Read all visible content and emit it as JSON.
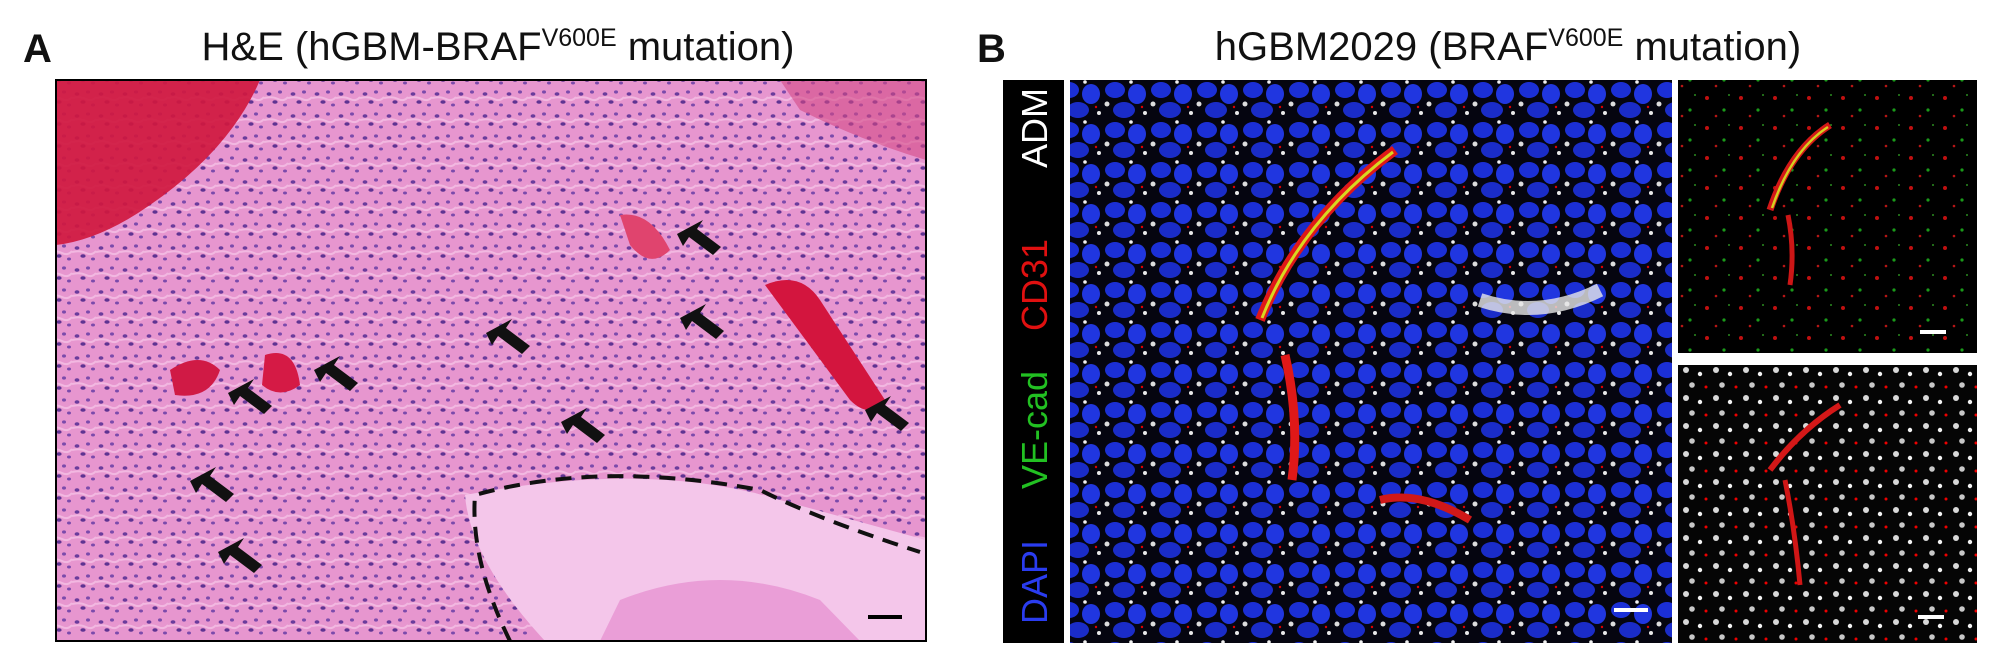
{
  "panels": [
    {
      "label": "A",
      "title": {
        "text": "H&E (hGBM-BRAF",
        "superscript": "V600E",
        "suffix": " mutation)"
      }
    },
    {
      "label": "B",
      "title": {
        "text": "hGBM2029 (BRAF",
        "superscript": "V600E",
        "suffix": " mutation)"
      },
      "channels": [
        "ADM",
        "CD31",
        "VE-cad",
        "DAPI"
      ]
    }
  ]
}
